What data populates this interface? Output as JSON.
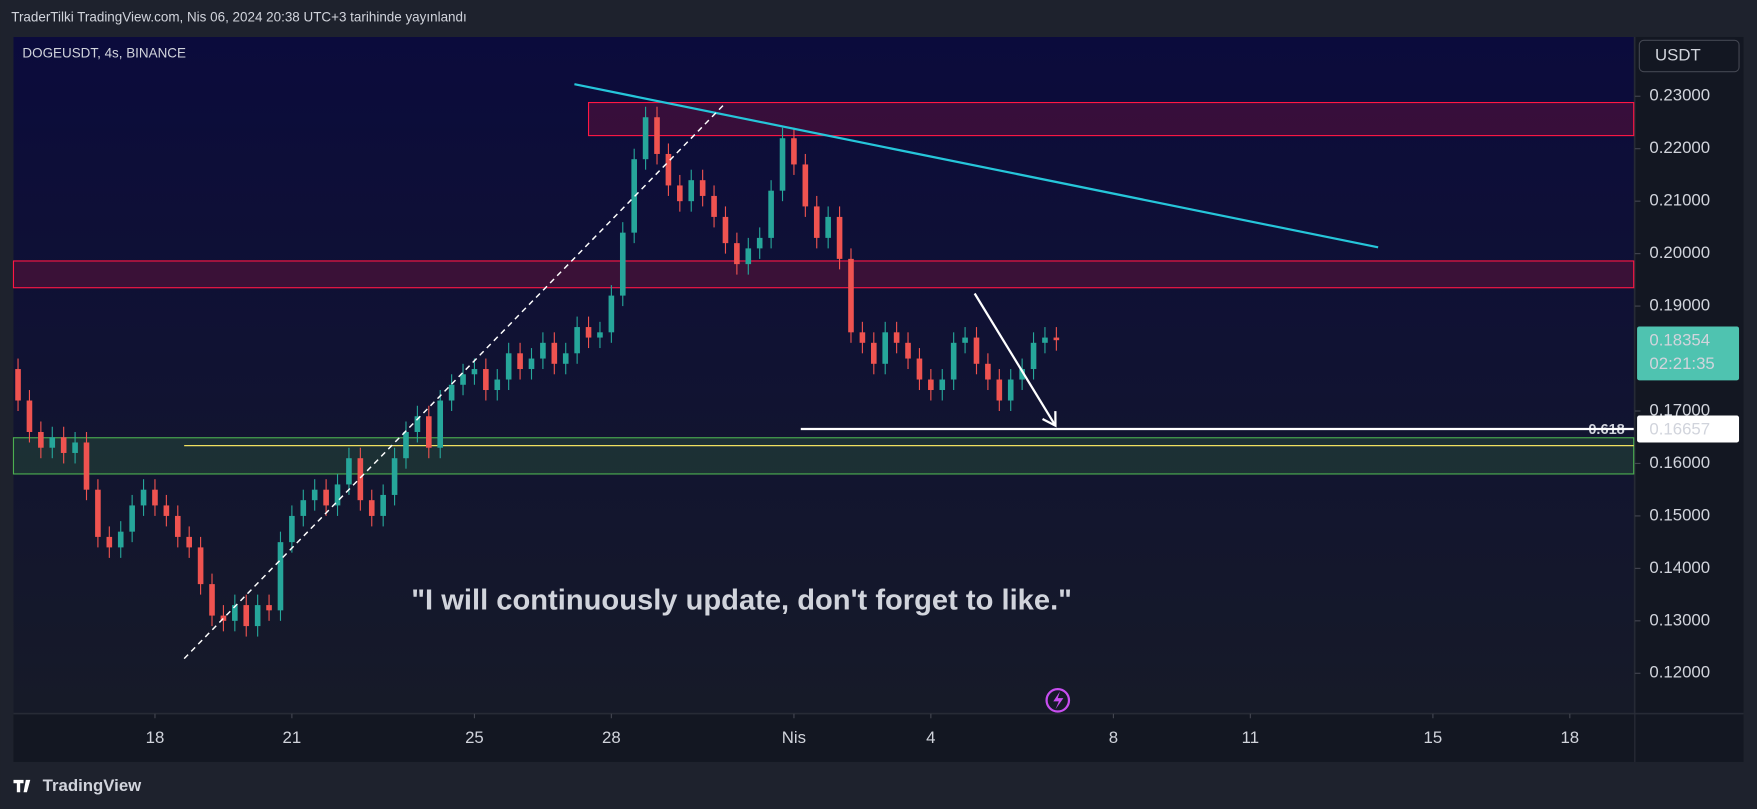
{
  "header": {
    "text": "TraderTilki TradingView.com, Nis 06, 2024 20:38 UTC+3 tarihinde yayınlandı"
  },
  "footer": {
    "brand": "TradingView"
  },
  "chart_data": {
    "type": "candlestick",
    "title": "DOGEUSDT, 4s, BINANCE",
    "currency": "USDT",
    "annotation": "\"I will continuously update, don't forget to like.\"",
    "up_color": "#26a69a",
    "down_color": "#ef5350",
    "xlim": [
      14.9,
      50.4
    ],
    "xticks": [
      {
        "value": 18,
        "label": "18"
      },
      {
        "value": 21,
        "label": "21"
      },
      {
        "value": 25,
        "label": "25"
      },
      {
        "value": 28,
        "label": "28"
      },
      {
        "value": 32,
        "label": "Nis"
      },
      {
        "value": 35,
        "label": "4"
      },
      {
        "value": 39,
        "label": "8"
      },
      {
        "value": 42,
        "label": "11"
      },
      {
        "value": 46,
        "label": "15"
      },
      {
        "value": 49,
        "label": "18"
      }
    ],
    "ylim": [
      0.1125,
      0.2413
    ],
    "yticks": [
      {
        "value": 0.23,
        "label": "0.23000"
      },
      {
        "value": 0.22,
        "label": "0.22000"
      },
      {
        "value": 0.21,
        "label": "0.21000"
      },
      {
        "value": 0.2,
        "label": "0.20000"
      },
      {
        "value": 0.19,
        "label": "0.19000"
      },
      {
        "value": 0.17,
        "label": "0.17000"
      },
      {
        "value": 0.16,
        "label": "0.16000"
      },
      {
        "value": 0.15,
        "label": "0.15000"
      },
      {
        "value": 0.14,
        "label": "0.14000"
      },
      {
        "value": 0.13,
        "label": "0.13000"
      },
      {
        "value": 0.12,
        "label": "0.12000"
      }
    ],
    "x": [
      15,
      15.25,
      15.5,
      15.75,
      16,
      16.25,
      16.5,
      16.75,
      17,
      17.25,
      17.5,
      17.75,
      18,
      18.25,
      18.5,
      18.75,
      19,
      19.25,
      19.5,
      19.75,
      20,
      20.25,
      20.5,
      20.75,
      21,
      21.25,
      21.5,
      21.75,
      22,
      22.25,
      22.5,
      22.75,
      23,
      23.25,
      23.5,
      23.75,
      24,
      24.25,
      24.5,
      24.75,
      25,
      25.25,
      25.5,
      25.75,
      26,
      26.25,
      26.5,
      26.75,
      27,
      27.25,
      27.5,
      27.75,
      28,
      28.25,
      28.5,
      28.75,
      29,
      29.25,
      29.5,
      29.75,
      30,
      30.25,
      30.5,
      30.75,
      31,
      31.25,
      31.5,
      31.75,
      32,
      32.25,
      32.5,
      32.75,
      33,
      33.25,
      33.5,
      33.75,
      34,
      34.25,
      34.5,
      34.75,
      35,
      35.25,
      35.5,
      35.75,
      36,
      36.25,
      36.5,
      36.75,
      37,
      37.25,
      37.5,
      37.75
    ],
    "open": [
      0.178,
      0.172,
      0.166,
      0.163,
      0.165,
      0.162,
      0.164,
      0.155,
      0.146,
      0.144,
      0.147,
      0.152,
      0.155,
      0.152,
      0.15,
      0.146,
      0.144,
      0.137,
      0.131,
      0.13,
      0.133,
      0.129,
      0.133,
      0.132,
      0.145,
      0.15,
      0.153,
      0.155,
      0.152,
      0.156,
      0.161,
      0.153,
      0.15,
      0.154,
      0.161,
      0.166,
      0.169,
      0.163,
      0.172,
      0.175,
      0.177,
      0.178,
      0.174,
      0.176,
      0.181,
      0.178,
      0.18,
      0.183,
      0.179,
      0.181,
      0.186,
      0.184,
      0.185,
      0.192,
      0.204,
      0.218,
      0.226,
      0.219,
      0.213,
      0.21,
      0.214,
      0.211,
      0.207,
      0.202,
      0.198,
      0.201,
      0.203,
      0.212,
      0.222,
      0.217,
      0.209,
      0.203,
      0.207,
      0.199,
      0.185,
      0.183,
      0.179,
      0.185,
      0.183,
      0.18,
      0.176,
      0.174,
      0.176,
      0.183,
      0.184,
      0.179,
      0.176,
      0.172,
      0.176,
      0.178,
      0.183,
      0.184
    ],
    "high": [
      0.18,
      0.174,
      0.168,
      0.167,
      0.167,
      0.166,
      0.166,
      0.157,
      0.148,
      0.149,
      0.154,
      0.157,
      0.157,
      0.154,
      0.152,
      0.148,
      0.146,
      0.139,
      0.133,
      0.135,
      0.135,
      0.135,
      0.135,
      0.147,
      0.152,
      0.155,
      0.157,
      0.157,
      0.158,
      0.163,
      0.163,
      0.155,
      0.156,
      0.163,
      0.168,
      0.171,
      0.171,
      0.174,
      0.177,
      0.179,
      0.18,
      0.18,
      0.178,
      0.183,
      0.183,
      0.182,
      0.185,
      0.185,
      0.183,
      0.188,
      0.188,
      0.187,
      0.194,
      0.206,
      0.22,
      0.228,
      0.228,
      0.221,
      0.215,
      0.216,
      0.216,
      0.213,
      0.209,
      0.204,
      0.203,
      0.205,
      0.214,
      0.224,
      0.224,
      0.219,
      0.211,
      0.209,
      0.209,
      0.201,
      0.187,
      0.185,
      0.187,
      0.187,
      0.185,
      0.182,
      0.178,
      0.178,
      0.185,
      0.186,
      0.186,
      0.181,
      0.178,
      0.178,
      0.18,
      0.185,
      0.186,
      0.186
    ],
    "low": [
      0.17,
      0.164,
      0.161,
      0.161,
      0.16,
      0.16,
      0.153,
      0.144,
      0.142,
      0.142,
      0.145,
      0.15,
      0.15,
      0.148,
      0.144,
      0.142,
      0.135,
      0.129,
      0.128,
      0.128,
      0.127,
      0.127,
      0.13,
      0.13,
      0.143,
      0.148,
      0.151,
      0.15,
      0.15,
      0.154,
      0.151,
      0.148,
      0.148,
      0.152,
      0.159,
      0.164,
      0.161,
      0.161,
      0.17,
      0.173,
      0.175,
      0.172,
      0.172,
      0.174,
      0.176,
      0.176,
      0.178,
      0.177,
      0.177,
      0.179,
      0.182,
      0.182,
      0.183,
      0.19,
      0.202,
      0.216,
      0.217,
      0.211,
      0.208,
      0.208,
      0.209,
      0.205,
      0.2,
      0.196,
      0.196,
      0.199,
      0.201,
      0.21,
      0.215,
      0.207,
      0.201,
      0.201,
      0.197,
      0.183,
      0.181,
      0.177,
      0.177,
      0.181,
      0.178,
      0.174,
      0.172,
      0.172,
      0.174,
      0.181,
      0.177,
      0.174,
      0.17,
      0.17,
      0.174,
      0.176,
      0.181,
      0.1815
    ],
    "close": [
      0.172,
      0.166,
      0.163,
      0.165,
      0.162,
      0.164,
      0.155,
      0.146,
      0.144,
      0.147,
      0.152,
      0.155,
      0.152,
      0.15,
      0.146,
      0.144,
      0.137,
      0.131,
      0.13,
      0.133,
      0.129,
      0.133,
      0.132,
      0.145,
      0.15,
      0.153,
      0.155,
      0.152,
      0.156,
      0.161,
      0.153,
      0.15,
      0.154,
      0.161,
      0.166,
      0.169,
      0.163,
      0.172,
      0.175,
      0.177,
      0.178,
      0.174,
      0.176,
      0.181,
      0.178,
      0.18,
      0.183,
      0.179,
      0.181,
      0.186,
      0.184,
      0.185,
      0.192,
      0.204,
      0.218,
      0.226,
      0.219,
      0.213,
      0.21,
      0.214,
      0.211,
      0.207,
      0.202,
      0.198,
      0.201,
      0.203,
      0.212,
      0.222,
      0.217,
      0.209,
      0.203,
      0.207,
      0.199,
      0.185,
      0.183,
      0.179,
      0.185,
      0.183,
      0.18,
      0.176,
      0.174,
      0.176,
      0.183,
      0.184,
      0.179,
      0.176,
      0.172,
      0.176,
      0.178,
      0.183,
      0.184,
      0.1835
    ],
    "zones": [
      {
        "x_start": 27.5,
        "from": 0.2225,
        "to": 0.2288,
        "color": "#ff1744"
      },
      {
        "x_start": 14.9,
        "from": 0.1935,
        "to": 0.1986,
        "color": "#ff1744"
      },
      {
        "x_start": 14.9,
        "from": 0.158,
        "to": 0.1649,
        "color": "#4caf50"
      }
    ],
    "lines": [
      {
        "x": [
          27.19,
          44.8
        ],
        "y": [
          0.2323,
          0.2012
        ],
        "color": "#26c6da",
        "style": "solid"
      },
      {
        "x": [
          18.64,
          30.5
        ],
        "y": [
          0.1228,
          0.2287
        ],
        "color": "#ffffff",
        "style": "dashed"
      },
      {
        "x": [
          35.96,
          37.73
        ],
        "y": [
          0.1924,
          0.1672
        ],
        "color": "#ffffff",
        "style": "arrow"
      }
    ],
    "fib_level": {
      "value": 0.1634,
      "label": "0.618",
      "x_start": 18.64,
      "color": "#f0e060"
    },
    "horizontal_level": {
      "value": 0.16657,
      "label": "0.16657",
      "x_start": 32.15
    },
    "last_price": {
      "value": 0.18354,
      "label": "0.18354",
      "countdown": "02:21:35",
      "color": "#4fc3b0"
    }
  }
}
